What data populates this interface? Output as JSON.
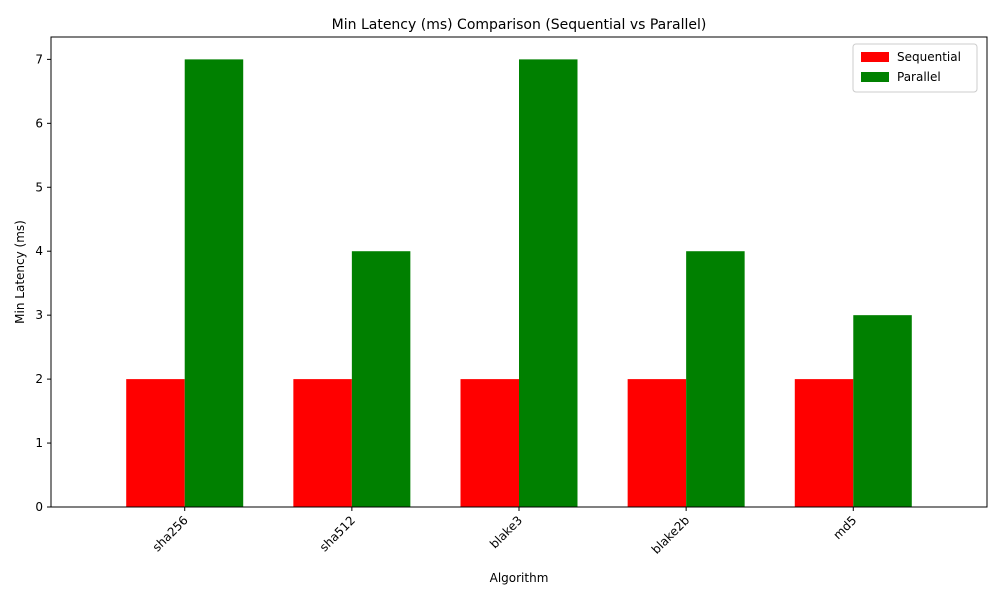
{
  "chart_data": {
    "type": "bar",
    "title": "Min Latency (ms) Comparison (Sequential vs Parallel)",
    "xlabel": "Algorithm",
    "ylabel": "Min Latency (ms)",
    "categories": [
      "sha256",
      "sha512",
      "blake3",
      "blake2b",
      "md5"
    ],
    "series": [
      {
        "name": "Sequential",
        "color": "#ff0000",
        "values": [
          2,
          2,
          2,
          2,
          2
        ]
      },
      {
        "name": "Parallel",
        "color": "#008000",
        "values": [
          7,
          4,
          7,
          4,
          3
        ]
      }
    ],
    "ylim": [
      0,
      7.35
    ],
    "yticks": [
      0,
      1,
      2,
      3,
      4,
      5,
      6,
      7
    ],
    "grid": false,
    "legend_position": "top-right",
    "xtick_rotation": 45
  }
}
